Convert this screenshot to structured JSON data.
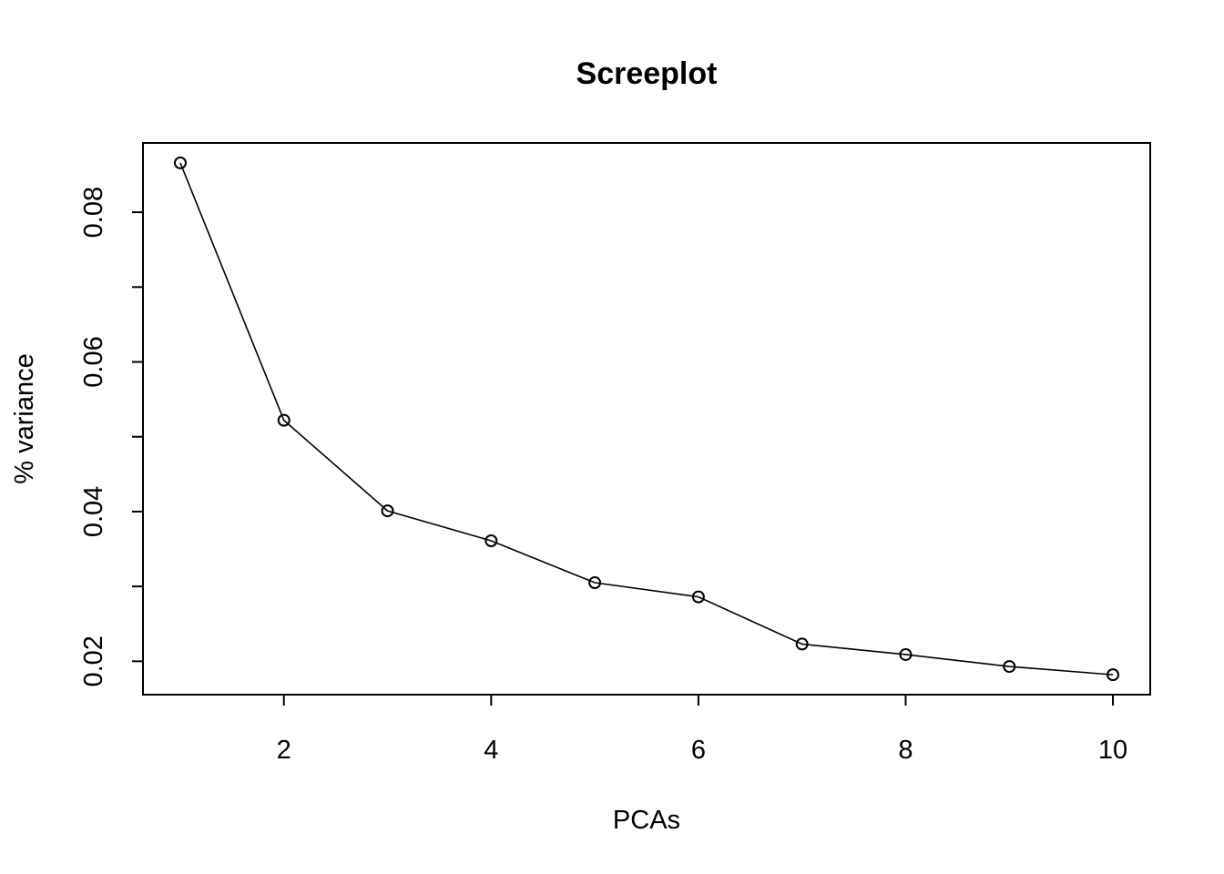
{
  "chart_data": {
    "type": "line",
    "title": "Screeplot",
    "xlabel": "PCAs",
    "ylabel": "% variance",
    "x": [
      1,
      2,
      3,
      4,
      5,
      6,
      7,
      8,
      9,
      10
    ],
    "series": [
      {
        "values": [
          0.0866,
          0.0522,
          0.0401,
          0.0361,
          0.0305,
          0.0286,
          0.0223,
          0.0209,
          0.0193,
          0.0182
        ]
      }
    ],
    "xticks": [
      2,
      4,
      6,
      8,
      10
    ],
    "yticks": [
      0.02,
      0.03,
      0.04,
      0.05,
      0.06,
      0.07,
      0.08
    ],
    "yticklabels": [
      "0.02",
      "",
      "0.04",
      "",
      "0.06",
      "",
      "0.08"
    ],
    "xlim": [
      0.64,
      10.36
    ],
    "ylim": [
      0.01554,
      0.08926
    ],
    "grid": false,
    "marker": "open-circle"
  }
}
